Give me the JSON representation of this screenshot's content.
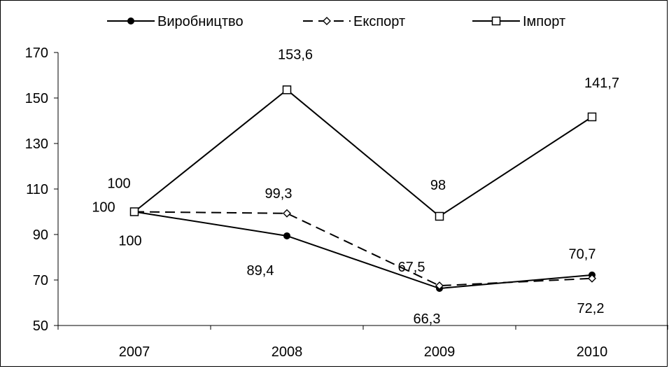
{
  "chart_data": {
    "type": "line",
    "title": "",
    "xlabel": "",
    "ylabel": "",
    "categories": [
      "2007",
      "2008",
      "2009",
      "2010"
    ],
    "ylim": [
      50,
      170
    ],
    "yticks": [
      "50",
      "70",
      "90",
      "110",
      "130",
      "150",
      "170"
    ],
    "grid": false,
    "legend_position": "top",
    "series": [
      {
        "name": "Виробництво",
        "values": [
          100,
          89.4,
          66.3,
          72.2
        ],
        "labels": [
          "100",
          "89,4",
          "66,3",
          "72,2"
        ],
        "marker": "filled-circle",
        "line_style": "solid",
        "color": "#000000"
      },
      {
        "name": "Експорт",
        "values": [
          100,
          99.3,
          67.5,
          70.7
        ],
        "labels": [
          "100",
          "99,3",
          "67,5",
          "70,7"
        ],
        "marker": "open-diamond",
        "line_style": "dashed",
        "color": "#000000"
      },
      {
        "name": "Імпорт",
        "values": [
          100,
          153.6,
          98,
          141.7
        ],
        "labels": [
          "100",
          "153,6",
          "98",
          "141,7"
        ],
        "marker": "open-square",
        "line_style": "solid",
        "color": "#000000"
      }
    ]
  }
}
